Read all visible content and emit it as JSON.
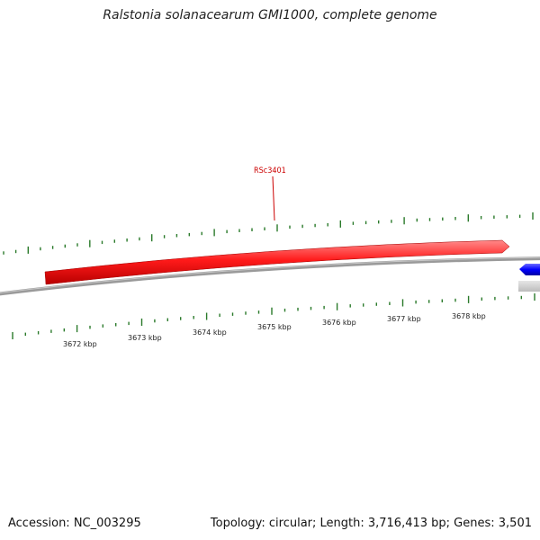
{
  "title": "Ralstonia solanacearum GMI1000, complete genome",
  "footer": {
    "accession": "Accession: NC_003295",
    "summary": "Topology: circular; Length: 3,716,413 bp; Genes: 3,501"
  },
  "gene_label": "RSc3401",
  "kbp_ticks": [
    {
      "label": "3672 kbp"
    },
    {
      "label": "3673 kbp"
    },
    {
      "label": "3674 kbp"
    },
    {
      "label": "3675 kbp"
    },
    {
      "label": "3676 kbp"
    },
    {
      "label": "3677 kbp"
    },
    {
      "label": "3678 kbp"
    }
  ],
  "colors": {
    "gene_forward": "#ff0000",
    "gene_reverse": "#0000ff",
    "gene_gray": "#cccccc",
    "backbone": "#888888",
    "ticks": "#2a7a2a",
    "label": "#cc0000"
  }
}
